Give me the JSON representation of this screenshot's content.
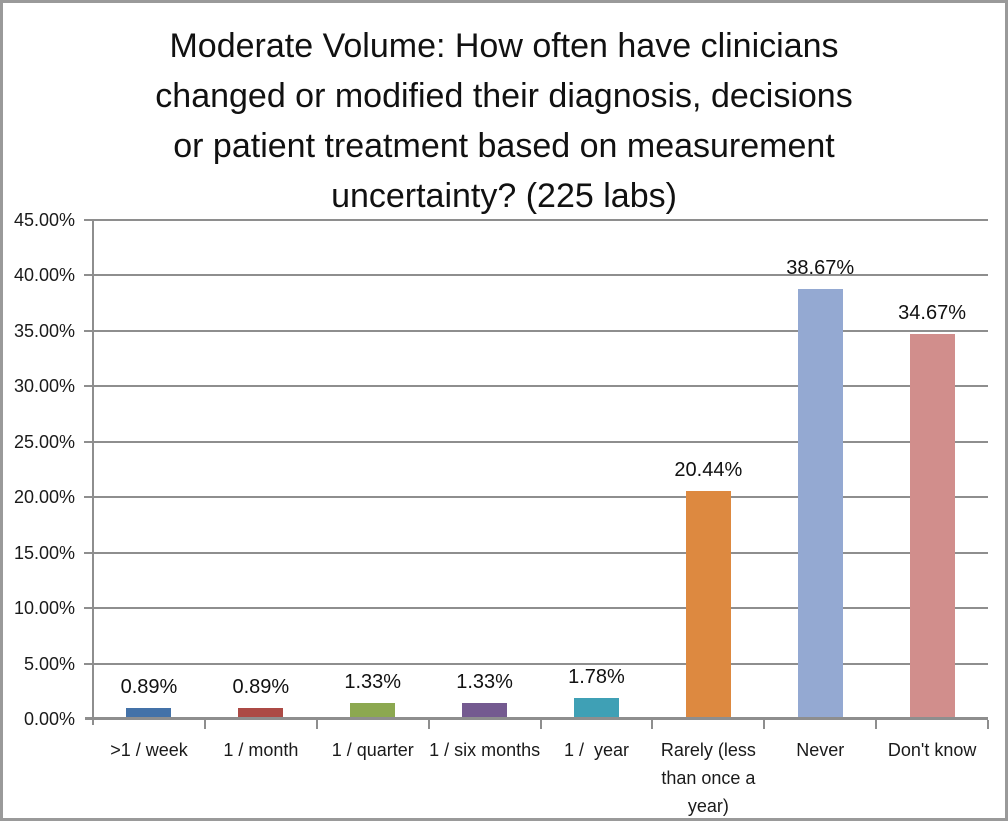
{
  "window": {
    "background_color": "#ffffff",
    "border_color": "#9a9a9a"
  },
  "chart_data": {
    "type": "bar",
    "title": "Moderate Volume: How often have clinicians changed or modified their diagnosis, decisions or patient treatment based on measurement uncertainty? (225 labs)",
    "title_lines": [
      "Moderate Volume: How often have clinicians",
      "changed or modified their diagnosis, decisions",
      "or patient treatment based on measurement",
      "uncertainty? (225 labs)"
    ],
    "categories": [
      ">1 / week",
      "1 / month",
      "1 / quarter",
      "1 / six months",
      "1 /  year",
      "Rarely (less than once a year)",
      "Never",
      "Don't know"
    ],
    "values": [
      0.89,
      0.89,
      1.33,
      1.33,
      1.78,
      20.44,
      38.67,
      34.67
    ],
    "data_labels": [
      "0.89%",
      "0.89%",
      "1.33%",
      "1.33%",
      "1.78%",
      "20.44%",
      "38.67%",
      "34.67%"
    ],
    "bar_colors": [
      "#4472A8",
      "#AC4A45",
      "#8CA850",
      "#745A90",
      "#3FA0B5",
      "#DD8940",
      "#94A9D2",
      "#D18E8C"
    ],
    "xlabel": "",
    "ylabel": "",
    "ylim": [
      0,
      45
    ],
    "ytick_step": 5,
    "ytick_labels": [
      "45.00%",
      "40.00%",
      "35.00%",
      "30.00%",
      "25.00%",
      "20.00%",
      "15.00%",
      "10.00%",
      "5.00%",
      "0.00%"
    ],
    "grid": true,
    "legend_position": "none",
    "axis_color": "#8e8e8e",
    "data_label_position": "above-bar"
  }
}
